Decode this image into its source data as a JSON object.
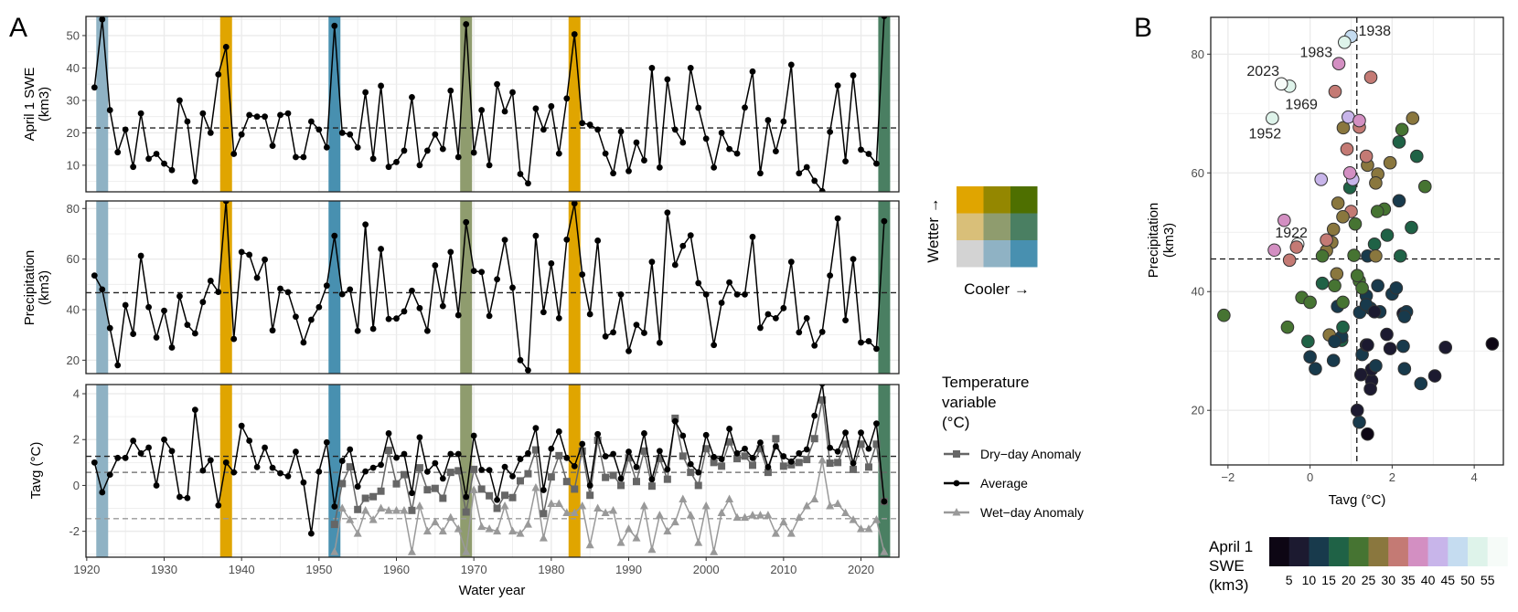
{
  "chart_data": [
    {
      "type": "line",
      "panel_label": "A",
      "title": "",
      "xlabel": "Water year",
      "xlim": [
        1919.9,
        2024.9
      ],
      "xticks": [
        1920,
        1930,
        1940,
        1950,
        1960,
        1970,
        1980,
        1990,
        2000,
        2010,
        2020
      ],
      "grid": true,
      "highlight_years": [
        {
          "year": 1922,
          "color": "#8fb2c4"
        },
        {
          "year": 1938,
          "color": "#e0a500"
        },
        {
          "year": 1952,
          "color": "#4890b0"
        },
        {
          "year": 1969,
          "color": "#8f9c6e"
        },
        {
          "year": 1983,
          "color": "#e0a500"
        },
        {
          "year": 2023,
          "color": "#4a7f62"
        }
      ],
      "years": [
        1921,
        1922,
        1923,
        1924,
        1925,
        1926,
        1927,
        1928,
        1929,
        1930,
        1931,
        1932,
        1933,
        1934,
        1935,
        1936,
        1937,
        1938,
        1939,
        1940,
        1941,
        1942,
        1943,
        1944,
        1945,
        1946,
        1947,
        1948,
        1949,
        1950,
        1951,
        1952,
        1953,
        1954,
        1955,
        1956,
        1957,
        1958,
        1959,
        1960,
        1961,
        1962,
        1963,
        1964,
        1965,
        1966,
        1967,
        1968,
        1969,
        1970,
        1971,
        1972,
        1973,
        1974,
        1975,
        1976,
        1977,
        1978,
        1979,
        1980,
        1981,
        1982,
        1983,
        1984,
        1985,
        1986,
        1987,
        1988,
        1989,
        1990,
        1991,
        1992,
        1993,
        1994,
        1995,
        1996,
        1997,
        1998,
        1999,
        2000,
        2001,
        2002,
        2003,
        2004,
        2005,
        2006,
        2007,
        2008,
        2009,
        2010,
        2011,
        2012,
        2013,
        2014,
        2015,
        2016,
        2017,
        2018,
        2019,
        2020,
        2021,
        2022,
        2023
      ],
      "subplots": [
        {
          "ylabel": [
            "April 1 SWE",
            "(km3)"
          ],
          "ylim": [
            1.8,
            55.9
          ],
          "yticks": [
            10,
            20,
            30,
            40,
            50
          ],
          "series": [
            {
              "name": "April 1 SWE",
              "color": "#000000",
              "marker": "circle",
              "mean": 21.5,
              "values": [
                34,
                55,
                27,
                14,
                21,
                9.5,
                26,
                12,
                13.5,
                10.5,
                8.5,
                30,
                23.5,
                5,
                26,
                20,
                38,
                46.5,
                13.5,
                19.5,
                25.5,
                25,
                25,
                16,
                25.5,
                26,
                12.5,
                12.5,
                23.5,
                21,
                15.5,
                53,
                20,
                19.5,
                15.5,
                32.5,
                12,
                34.5,
                9.5,
                11,
                14.5,
                31,
                10,
                14.5,
                19.5,
                15,
                33,
                12.5,
                53.5,
                13.9,
                27,
                10,
                35,
                26.6,
                32.5,
                7.3,
                4.4,
                27.5,
                21,
                28.2,
                13.6,
                30.6,
                50.4,
                23,
                22.5,
                21,
                13.6,
                7.5,
                20.4,
                8.2,
                17,
                11.5,
                40,
                9.3,
                36.5,
                21,
                17,
                40,
                27.7,
                18.2,
                9.3,
                20,
                15,
                13.6,
                27.8,
                38.9,
                7.5,
                23.9,
                14.3,
                23.5,
                41,
                7.5,
                9.4,
                5.2,
                2,
                20.3,
                34.6,
                11.2,
                37.7,
                14.8,
                13.5,
                10.5,
                56
              ]
            }
          ]
        },
        {
          "ylabel": [
            "Precipitation",
            "(km3)"
          ],
          "ylim": [
            14.7,
            83
          ],
          "yticks": [
            20,
            40,
            60,
            80
          ],
          "series": [
            {
              "name": "Precipitation",
              "color": "#000000",
              "marker": "circle",
              "mean": 46.7,
              "values": [
                53.5,
                48,
                32.7,
                18,
                41.8,
                30.4,
                61.3,
                41,
                29,
                39.6,
                25,
                45.3,
                34,
                30.6,
                43,
                51.4,
                47,
                83,
                28.4,
                62.8,
                61.7,
                52.6,
                59.8,
                31.8,
                48.3,
                46.9,
                37.2,
                27,
                36,
                41,
                49.5,
                69.2,
                46.1,
                48,
                31.6,
                73.7,
                32.4,
                64,
                36.3,
                36.5,
                39.3,
                47.5,
                40.6,
                31.6,
                57.5,
                41.4,
                62.8,
                37.8,
                74.6,
                55.3,
                54.9,
                37.5,
                52,
                67.6,
                48.7,
                20,
                16,
                69.2,
                39,
                58.3,
                36.6,
                67.7,
                82,
                53.9,
                38.2,
                67.3,
                29.4,
                31,
                46,
                23.6,
                34,
                30.8,
                58.9,
                26.9,
                78.4,
                57.7,
                65.2,
                69.4,
                50.5,
                46,
                26,
                42.7,
                50.8,
                46,
                46,
                68.8,
                32.8,
                38.2,
                36.6,
                40.6,
                58.9,
                31,
                36.6,
                25.8,
                31.2,
                53.5,
                76.1,
                35.8,
                60,
                27,
                27.5,
                24.5,
                75
              ]
            }
          ]
        },
        {
          "ylabel": [
            "Tavg (°C)"
          ],
          "ylim": [
            -3.13,
            4.4
          ],
          "yticks": [
            -2,
            0,
            2,
            4
          ],
          "series": [
            {
              "name": "Dry−day Anomaly",
              "color": "#666666",
              "marker": "square",
              "mean": 0.57,
              "values": [
                null,
                null,
                null,
                null,
                null,
                null,
                null,
                null,
                null,
                null,
                null,
                null,
                null,
                null,
                null,
                null,
                null,
                null,
                null,
                null,
                null,
                null,
                null,
                null,
                null,
                null,
                null,
                null,
                null,
                null,
                null,
                -1.7,
                0.08,
                0.81,
                -1.05,
                -0.56,
                -0.49,
                -0.25,
                1.53,
                0.07,
                0.47,
                -1.09,
                0.77,
                -0.19,
                -0.13,
                -0.56,
                0.57,
                0.64,
                -1.16,
                0.7,
                -0.16,
                -0.45,
                -1.0,
                -0.43,
                -0.53,
                0.2,
                0.51,
                1.55,
                -1.23,
                0.37,
                1.3,
                0.17,
                -0.16,
                1.5,
                -0.43,
                1.97,
                0.35,
                0.44,
                0,
                1.2,
                0.17,
                1.5,
                -0.03,
                1.17,
                0.27,
                2.93,
                1.28,
                0.57,
                0,
                1.6,
                1.0,
                0.84,
                1.9,
                1.17,
                1.28,
                0.88,
                1.6,
                0.57,
                2.04,
                0.84,
                0.9,
                1.0,
                1.13,
                2.04,
                3.73,
                0.97,
                1.0,
                1.8,
                0.7,
                1.8,
                0.8,
                1.8,
                -0.7
              ]
            },
            {
              "name": "Average",
              "color": "#000000",
              "marker": "circle",
              "mean": 1.27,
              "values": [
                1.0,
                -0.3,
                0.47,
                1.2,
                1.2,
                1.95,
                1.4,
                1.65,
                0,
                2.0,
                1.5,
                -0.5,
                -0.55,
                3.3,
                0.65,
                1.1,
                -0.87,
                1.0,
                0.57,
                2.6,
                1.95,
                0.8,
                1.65,
                0.77,
                0.53,
                0.4,
                1.47,
                0.13,
                -2.1,
                0.6,
                1.88,
                -0.92,
                1.07,
                1.57,
                -0.05,
                0.61,
                0.77,
                0.9,
                2.27,
                1.21,
                1.37,
                -0.33,
                2.1,
                0.6,
                0.97,
                0.3,
                1.37,
                1.37,
                -0.5,
                2.17,
                0.68,
                0.67,
                -0.63,
                0.81,
                0.4,
                1.15,
                1.4,
                2.5,
                -0.2,
                1.6,
                2.35,
                1.2,
                0.84,
                1.81,
                0,
                2.24,
                1.27,
                1.37,
                0.3,
                1.47,
                0.8,
                2.27,
                0.27,
                1.5,
                0.7,
                2.8,
                2.17,
                0.93,
                0.57,
                2.2,
                1.24,
                1.15,
                2.47,
                1.4,
                1.6,
                1.2,
                1.87,
                0.8,
                1.7,
                1.27,
                1.04,
                1.4,
                1.57,
                3.04,
                4.44,
                1.64,
                1.48,
                2.3,
                0.97,
                2.3,
                1.6,
                2.7,
                -0.7
              ]
            },
            {
              "name": "Wet−day Anomaly",
              "color": "#999999",
              "marker": "triangle",
              "mean": -1.45,
              "values": [
                null,
                null,
                null,
                null,
                null,
                null,
                null,
                null,
                null,
                null,
                null,
                null,
                null,
                null,
                null,
                null,
                null,
                null,
                null,
                null,
                null,
                null,
                null,
                null,
                null,
                null,
                null,
                null,
                null,
                null,
                null,
                -2.9,
                -1.0,
                -1.5,
                -2.1,
                -1.1,
                -1.5,
                -1.0,
                -1.1,
                -1.1,
                -1.1,
                -2.9,
                -0.9,
                -2.0,
                -1.6,
                -2.0,
                -1.4,
                -1.9,
                -2.9,
                -0.2,
                -1.8,
                -1.9,
                -2.0,
                -0.9,
                -2.0,
                -2.1,
                -1.7,
                -0.1,
                -2.3,
                -0.8,
                -0.8,
                -1.2,
                -1.2,
                -0.9,
                -2.6,
                -1.0,
                -1.2,
                -1.1,
                -2.5,
                -1.9,
                -2.3,
                -0.9,
                -2.8,
                -1.3,
                -2.0,
                -1.6,
                -0.6,
                -1.3,
                -2.5,
                -0.9,
                -2.9,
                -1.2,
                -0.6,
                -1.4,
                -1.4,
                -1.3,
                -1.3,
                -1.3,
                -2.1,
                -1.6,
                -2.1,
                -1.4,
                -0.9,
                -0.6,
                1.1,
                -0.9,
                -0.8,
                -1.2,
                -1.5,
                -1.9,
                -1.9,
                -1.5,
                -2.9
              ]
            }
          ]
        }
      ],
      "bivariate_legend": {
        "x_label": "Cooler →",
        "y_label": "Wetter →",
        "colors": [
          [
            "#e0a500",
            "#948700",
            "#4e6f00"
          ],
          [
            "#d9bf79",
            "#8f9c6e",
            "#4a7f62"
          ],
          [
            "#d3d3d3",
            "#8fb2c4",
            "#4890b0"
          ]
        ]
      },
      "legend": {
        "title": [
          "Temperature",
          "variable",
          "(°C)"
        ],
        "placement": "right",
        "entries": [
          "Dry−day Anomaly",
          "Average",
          "Wet−day Anomaly"
        ]
      }
    },
    {
      "type": "scatter",
      "panel_label": "B",
      "title": "",
      "x": "Average",
      "y": "Precipitation",
      "color": "April 1 SWE",
      "xlabel": "Tavg (°C)",
      "ylabel": [
        "Precipitation",
        "(km3)"
      ],
      "xlim": [
        -2.42,
        4.71
      ],
      "ylim": [
        10.8,
        86.2
      ],
      "xticks": [
        -2,
        0,
        2,
        4
      ],
      "yticks": [
        20,
        40,
        60,
        80
      ],
      "grid": true,
      "ref_lines": {
        "x": 1.14,
        "y": 45.5
      },
      "labeled_years": [
        "1938",
        "1983",
        "2023",
        "1969",
        "1952",
        "1922"
      ],
      "colorbar": {
        "title": [
          "April 1",
          "SWE",
          "(km3)"
        ],
        "breaks": [
          5,
          10,
          15,
          20,
          25,
          30,
          35,
          40,
          45,
          50,
          55
        ],
        "colors": [
          "#0d0614",
          "#1c1a30",
          "#183a4c",
          "#1f6246",
          "#467432",
          "#8a773e",
          "#c47a74",
          "#d38fc2",
          "#c8b5ea",
          "#c5dcf0",
          "#def3ea",
          "#f6fbf8"
        ]
      }
    }
  ]
}
